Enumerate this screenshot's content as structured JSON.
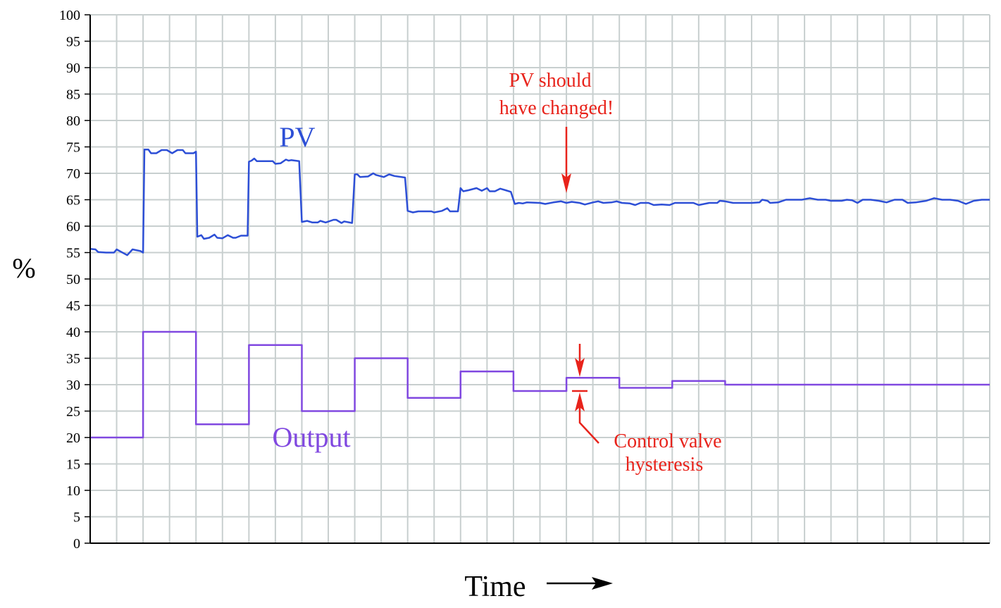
{
  "chart_data": {
    "type": "line",
    "ylabel": "%",
    "xlabel": "Time",
    "ylim": [
      0,
      100
    ],
    "y_ticks": [
      "0",
      "5",
      "10",
      "15",
      "20",
      "25",
      "30",
      "35",
      "40",
      "45",
      "50",
      "55",
      "60",
      "65",
      "70",
      "75",
      "80",
      "85",
      "90",
      "95",
      "100"
    ],
    "grid": true,
    "x_range": [
      0,
      34
    ],
    "series": [
      {
        "name": "PV",
        "color": "#2d4fd6",
        "points": [
          [
            0,
            55.7
          ],
          [
            0.2,
            55.6
          ],
          [
            0.3,
            55.1
          ],
          [
            0.6,
            55.0
          ],
          [
            0.9,
            55.0
          ],
          [
            1.0,
            55.6
          ],
          [
            1.4,
            54.5
          ],
          [
            1.6,
            55.6
          ],
          [
            1.9,
            55.3
          ],
          [
            2.0,
            55.0
          ],
          [
            2.05,
            74.5
          ],
          [
            2.2,
            74.5
          ],
          [
            2.3,
            73.8
          ],
          [
            2.5,
            73.8
          ],
          [
            2.7,
            74.4
          ],
          [
            2.9,
            74.4
          ],
          [
            3.1,
            73.8
          ],
          [
            3.3,
            74.4
          ],
          [
            3.5,
            74.4
          ],
          [
            3.6,
            73.8
          ],
          [
            3.9,
            73.8
          ],
          [
            4.0,
            74.1
          ],
          [
            4.05,
            58.0
          ],
          [
            4.2,
            58.3
          ],
          [
            4.3,
            57.6
          ],
          [
            4.5,
            57.8
          ],
          [
            4.7,
            58.4
          ],
          [
            4.8,
            57.8
          ],
          [
            5.0,
            57.7
          ],
          [
            5.2,
            58.3
          ],
          [
            5.4,
            57.8
          ],
          [
            5.5,
            57.8
          ],
          [
            5.7,
            58.2
          ],
          [
            5.95,
            58.2
          ],
          [
            6.0,
            72.2
          ],
          [
            6.1,
            72.4
          ],
          [
            6.2,
            72.8
          ],
          [
            6.3,
            72.3
          ],
          [
            6.5,
            72.3
          ],
          [
            6.7,
            72.3
          ],
          [
            6.9,
            72.3
          ],
          [
            7.0,
            71.8
          ],
          [
            7.2,
            71.9
          ],
          [
            7.4,
            72.6
          ],
          [
            7.5,
            72.4
          ],
          [
            7.6,
            72.5
          ],
          [
            7.9,
            72.3
          ],
          [
            8.0,
            60.8
          ],
          [
            8.2,
            61.0
          ],
          [
            8.4,
            60.7
          ],
          [
            8.6,
            60.7
          ],
          [
            8.7,
            61.0
          ],
          [
            8.9,
            60.7
          ],
          [
            9.2,
            61.2
          ],
          [
            9.3,
            61.2
          ],
          [
            9.5,
            60.6
          ],
          [
            9.6,
            60.9
          ],
          [
            9.9,
            60.6
          ],
          [
            10.0,
            69.8
          ],
          [
            10.1,
            69.8
          ],
          [
            10.2,
            69.3
          ],
          [
            10.5,
            69.4
          ],
          [
            10.7,
            70.0
          ],
          [
            10.8,
            69.7
          ],
          [
            11.1,
            69.3
          ],
          [
            11.3,
            69.8
          ],
          [
            11.5,
            69.5
          ],
          [
            11.9,
            69.2
          ],
          [
            12.0,
            62.9
          ],
          [
            12.2,
            62.6
          ],
          [
            12.4,
            62.8
          ],
          [
            12.6,
            62.8
          ],
          [
            12.9,
            62.8
          ],
          [
            13.0,
            62.6
          ],
          [
            13.3,
            62.9
          ],
          [
            13.5,
            63.4
          ],
          [
            13.6,
            62.8
          ],
          [
            13.9,
            62.8
          ],
          [
            14.0,
            67.2
          ],
          [
            14.1,
            66.6
          ],
          [
            14.3,
            66.8
          ],
          [
            14.6,
            67.2
          ],
          [
            14.8,
            66.7
          ],
          [
            15.0,
            67.2
          ],
          [
            15.1,
            66.6
          ],
          [
            15.3,
            66.6
          ],
          [
            15.5,
            67.1
          ],
          [
            15.7,
            66.8
          ],
          [
            15.9,
            66.5
          ],
          [
            16.05,
            64.2
          ],
          [
            16.2,
            64.4
          ],
          [
            16.35,
            64.3
          ],
          [
            16.5,
            64.5
          ],
          [
            17.0,
            64.4
          ],
          [
            17.2,
            64.2
          ],
          [
            17.5,
            64.5
          ],
          [
            17.8,
            64.7
          ],
          [
            18.0,
            64.4
          ],
          [
            18.2,
            64.6
          ],
          [
            18.5,
            64.4
          ],
          [
            18.7,
            64.1
          ],
          [
            19.0,
            64.5
          ],
          [
            19.2,
            64.7
          ],
          [
            19.4,
            64.4
          ],
          [
            19.7,
            64.5
          ],
          [
            19.9,
            64.7
          ],
          [
            20.1,
            64.4
          ],
          [
            20.4,
            64.3
          ],
          [
            20.6,
            64.0
          ],
          [
            20.8,
            64.4
          ],
          [
            21.1,
            64.4
          ],
          [
            21.3,
            64.0
          ],
          [
            21.6,
            64.1
          ],
          [
            21.9,
            64.0
          ],
          [
            22.1,
            64.4
          ],
          [
            22.5,
            64.4
          ],
          [
            22.8,
            64.4
          ],
          [
            23.0,
            64.0
          ],
          [
            23.4,
            64.4
          ],
          [
            23.7,
            64.4
          ],
          [
            23.8,
            64.8
          ],
          [
            24.0,
            64.7
          ],
          [
            24.3,
            64.4
          ],
          [
            24.6,
            64.4
          ],
          [
            25.0,
            64.4
          ],
          [
            25.3,
            64.5
          ],
          [
            25.4,
            65.0
          ],
          [
            25.6,
            64.8
          ],
          [
            25.7,
            64.4
          ],
          [
            26.0,
            64.5
          ],
          [
            26.3,
            65.0
          ],
          [
            26.7,
            65.0
          ],
          [
            26.9,
            65.0
          ],
          [
            27.2,
            65.3
          ],
          [
            27.5,
            65.0
          ],
          [
            27.8,
            65.0
          ],
          [
            28.0,
            64.8
          ],
          [
            28.4,
            64.8
          ],
          [
            28.6,
            65.0
          ],
          [
            28.8,
            64.9
          ],
          [
            29.0,
            64.4
          ],
          [
            29.2,
            65.0
          ],
          [
            29.5,
            65.0
          ],
          [
            29.8,
            64.8
          ],
          [
            30.1,
            64.5
          ],
          [
            30.4,
            65.0
          ],
          [
            30.7,
            65.0
          ],
          [
            30.9,
            64.4
          ],
          [
            31.2,
            64.5
          ],
          [
            31.6,
            64.8
          ],
          [
            31.9,
            65.3
          ],
          [
            32.2,
            65.0
          ],
          [
            32.5,
            65.0
          ],
          [
            32.8,
            64.8
          ],
          [
            33.1,
            64.2
          ],
          [
            33.4,
            64.8
          ],
          [
            33.7,
            65.0
          ],
          [
            34.0,
            65.0
          ]
        ]
      },
      {
        "name": "Output",
        "color": "#8048e0",
        "step_x": [
          0,
          2,
          4,
          6,
          8,
          10,
          12,
          14,
          16,
          18,
          20,
          22,
          24,
          34
        ],
        "step_y": [
          20,
          40,
          22.5,
          37.5,
          25,
          35,
          27.5,
          32.5,
          28.8,
          31.3,
          29.4,
          30.7,
          30
        ]
      }
    ],
    "annotations": {
      "pv_label": "PV",
      "output_label": "Output",
      "pv_note_line1": "PV should",
      "pv_note_line2": "have changed!",
      "hysteresis_line1": "Control valve",
      "hysteresis_line2": "hysteresis",
      "annotation_color": "#e8231b"
    }
  }
}
